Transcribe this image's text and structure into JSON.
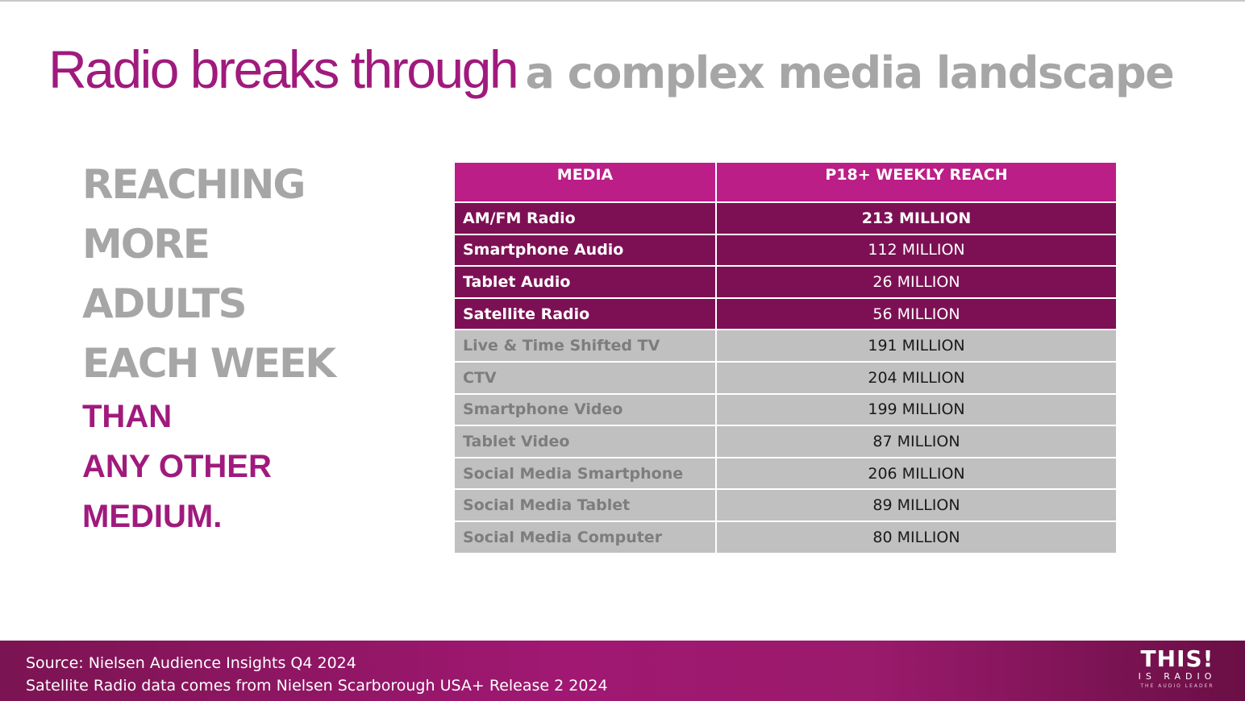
{
  "title": {
    "highlight": "Radio breaks through",
    "rest": "a complex media landscape"
  },
  "tagline": {
    "gray_lines": [
      "REACHING",
      "MORE",
      "ADULTS",
      "EACH WEEK"
    ],
    "pink_lines": [
      "THAN",
      "ANY OTHER",
      "MEDIUM."
    ]
  },
  "table": {
    "headers": [
      "MEDIA",
      "P18+ WEEKLY REACH"
    ],
    "rows": [
      {
        "media": "AM/FM Radio",
        "reach": "213 MILLION"
      },
      {
        "media": "Smartphone Audio",
        "reach": "112 MILLION"
      },
      {
        "media": "Tablet Audio",
        "reach": "26 MILLION"
      },
      {
        "media": "Satellite Radio",
        "reach": "56 MILLION"
      },
      {
        "media": "Live & Time Shifted TV",
        "reach": "191 MILLION"
      },
      {
        "media": "CTV",
        "reach": "204 MILLION"
      },
      {
        "media": "Smartphone Video",
        "reach": "199 MILLION"
      },
      {
        "media": "Tablet Video",
        "reach": "87 MILLION"
      },
      {
        "media": "Social Media Smartphone",
        "reach": "206 MILLION"
      },
      {
        "media": "Social Media Tablet",
        "reach": "89 MILLION"
      },
      {
        "media": "Social Media Computer",
        "reach": "80 MILLION"
      }
    ]
  },
  "footer": {
    "source_lines": [
      "Source: Nielsen Audience Insights Q4 2024",
      "Satellite Radio data comes from Nielsen Scarborough USA+ Release 2 2024"
    ]
  },
  "logo": {
    "main": "THIS!",
    "sub": "IS RADIO",
    "tag": "THE AUDIO LEADER"
  },
  "colors": {
    "brand_pink": "#a01a7d",
    "header_pink": "#bb1e87",
    "radio_rows": "#7d1054",
    "other_rows": "#c0c0c0",
    "gray_text": "#a6a6a6"
  }
}
